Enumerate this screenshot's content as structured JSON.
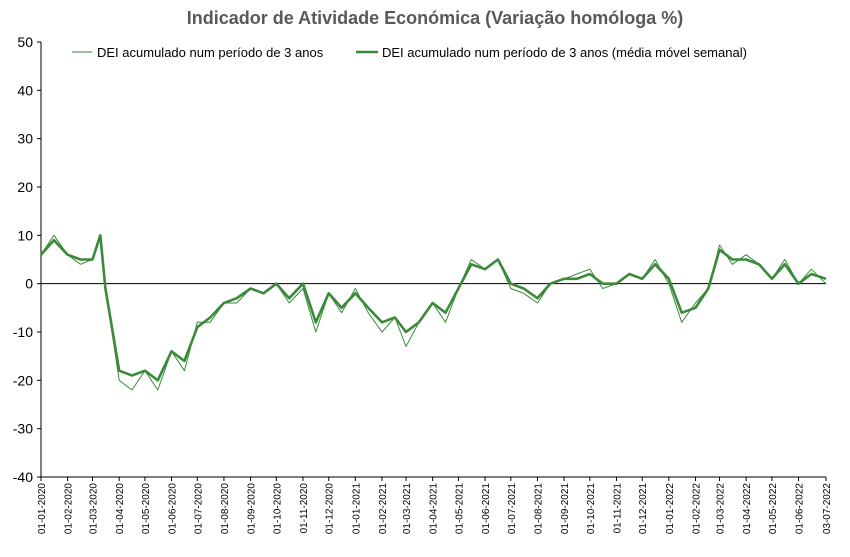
{
  "chart_data": {
    "type": "line",
    "title": "Indicador de Atividade Económica (Variação homóloga %)",
    "xlabel": "",
    "ylabel": "",
    "ylim": [
      -40,
      50
    ],
    "yticks": [
      50,
      40,
      30,
      20,
      10,
      0,
      -10,
      -20,
      -30,
      -40
    ],
    "grid": false,
    "legend_position": "top",
    "x_tick_labels": [
      "01-01-2020",
      "01-02-2020",
      "01-03-2020",
      "01-04-2020",
      "01-05-2020",
      "01-06-2020",
      "01-07-2020",
      "01-08-2020",
      "01-09-2020",
      "01-10-2020",
      "01-11-2020",
      "01-12-2020",
      "01-01-2021",
      "01-02-2021",
      "01-03-2021",
      "01-04-2021",
      "01-05-2021",
      "01-06-2021",
      "01-07-2021",
      "01-08-2021",
      "01-09-2021",
      "01-10-2021",
      "01-11-2021",
      "01-12-2021",
      "01-01-2022",
      "01-02-2022",
      "01-03-2022",
      "01-04-2022",
      "01-05-2022",
      "01-06-2022",
      "03-07-2022"
    ],
    "color": "#3a8a3a",
    "series": [
      {
        "name": "DEI acumulado num período de 3 anos",
        "style": "thin",
        "x": [
          "2020-01-01",
          "2020-01-16",
          "2020-02-01",
          "2020-02-16",
          "2020-03-01",
          "2020-03-10",
          "2020-03-16",
          "2020-04-01",
          "2020-04-16",
          "2020-05-01",
          "2020-05-16",
          "2020-06-01",
          "2020-06-16",
          "2020-07-01",
          "2020-07-16",
          "2020-08-01",
          "2020-08-16",
          "2020-09-01",
          "2020-09-16",
          "2020-10-01",
          "2020-10-16",
          "2020-11-01",
          "2020-11-16",
          "2020-12-01",
          "2020-12-16",
          "2021-01-01",
          "2021-01-16",
          "2021-02-01",
          "2021-02-16",
          "2021-03-01",
          "2021-03-16",
          "2021-04-01",
          "2021-04-16",
          "2021-05-01",
          "2021-05-16",
          "2021-06-01",
          "2021-06-16",
          "2021-07-01",
          "2021-07-16",
          "2021-08-01",
          "2021-08-16",
          "2021-09-01",
          "2021-09-16",
          "2021-10-01",
          "2021-10-16",
          "2021-11-01",
          "2021-11-16",
          "2021-12-01",
          "2021-12-16",
          "2022-01-01",
          "2022-01-16",
          "2022-02-01",
          "2022-02-16",
          "2022-03-01",
          "2022-03-16",
          "2022-04-01",
          "2022-04-16",
          "2022-05-01",
          "2022-05-16",
          "2022-06-01",
          "2022-06-16",
          "2022-07-03"
        ],
        "values": [
          6,
          10,
          6,
          4,
          5,
          10,
          -1,
          -20,
          -22,
          -18,
          -22,
          -14,
          -18,
          -8,
          -8,
          -4,
          -4,
          -1,
          -2,
          0,
          -4,
          -1,
          -10,
          -2,
          -6,
          -1,
          -6,
          -10,
          -7,
          -13,
          -8,
          -4,
          -8,
          -1,
          5,
          3,
          5,
          -1,
          -2,
          -4,
          0,
          1,
          2,
          3,
          -1,
          0,
          2,
          1,
          5,
          0,
          -8,
          -4,
          -1,
          8,
          4,
          6,
          4,
          1,
          5,
          0,
          3,
          0
        ]
      },
      {
        "name": "DEI acumulado num período de 3 anos (média móvel semanal)",
        "style": "thick",
        "x": [
          "2020-01-01",
          "2020-01-16",
          "2020-02-01",
          "2020-02-16",
          "2020-03-01",
          "2020-03-10",
          "2020-03-16",
          "2020-04-01",
          "2020-04-16",
          "2020-05-01",
          "2020-05-16",
          "2020-06-01",
          "2020-06-16",
          "2020-07-01",
          "2020-07-16",
          "2020-08-01",
          "2020-08-16",
          "2020-09-01",
          "2020-09-16",
          "2020-10-01",
          "2020-10-16",
          "2020-11-01",
          "2020-11-16",
          "2020-12-01",
          "2020-12-16",
          "2021-01-01",
          "2021-01-16",
          "2021-02-01",
          "2021-02-16",
          "2021-03-01",
          "2021-03-16",
          "2021-04-01",
          "2021-04-16",
          "2021-05-01",
          "2021-05-16",
          "2021-06-01",
          "2021-06-16",
          "2021-07-01",
          "2021-07-16",
          "2021-08-01",
          "2021-08-16",
          "2021-09-01",
          "2021-09-16",
          "2021-10-01",
          "2021-10-16",
          "2021-11-01",
          "2021-11-16",
          "2021-12-01",
          "2021-12-16",
          "2022-01-01",
          "2022-01-16",
          "2022-02-01",
          "2022-02-16",
          "2022-03-01",
          "2022-03-16",
          "2022-04-01",
          "2022-04-16",
          "2022-05-01",
          "2022-05-16",
          "2022-06-01",
          "2022-06-16",
          "2022-07-03"
        ],
        "values": [
          6,
          9,
          6,
          5,
          5,
          10,
          -1,
          -18,
          -19,
          -18,
          -20,
          -14,
          -16,
          -9,
          -7,
          -4,
          -3,
          -1,
          -2,
          0,
          -3,
          0,
          -8,
          -2,
          -5,
          -2,
          -5,
          -8,
          -7,
          -10,
          -8,
          -4,
          -6,
          -1,
          4,
          3,
          5,
          0,
          -1,
          -3,
          0,
          1,
          1,
          2,
          0,
          0,
          2,
          1,
          4,
          1,
          -6,
          -5,
          -1,
          7,
          5,
          5,
          4,
          1,
          4,
          0,
          2,
          1
        ]
      }
    ]
  }
}
